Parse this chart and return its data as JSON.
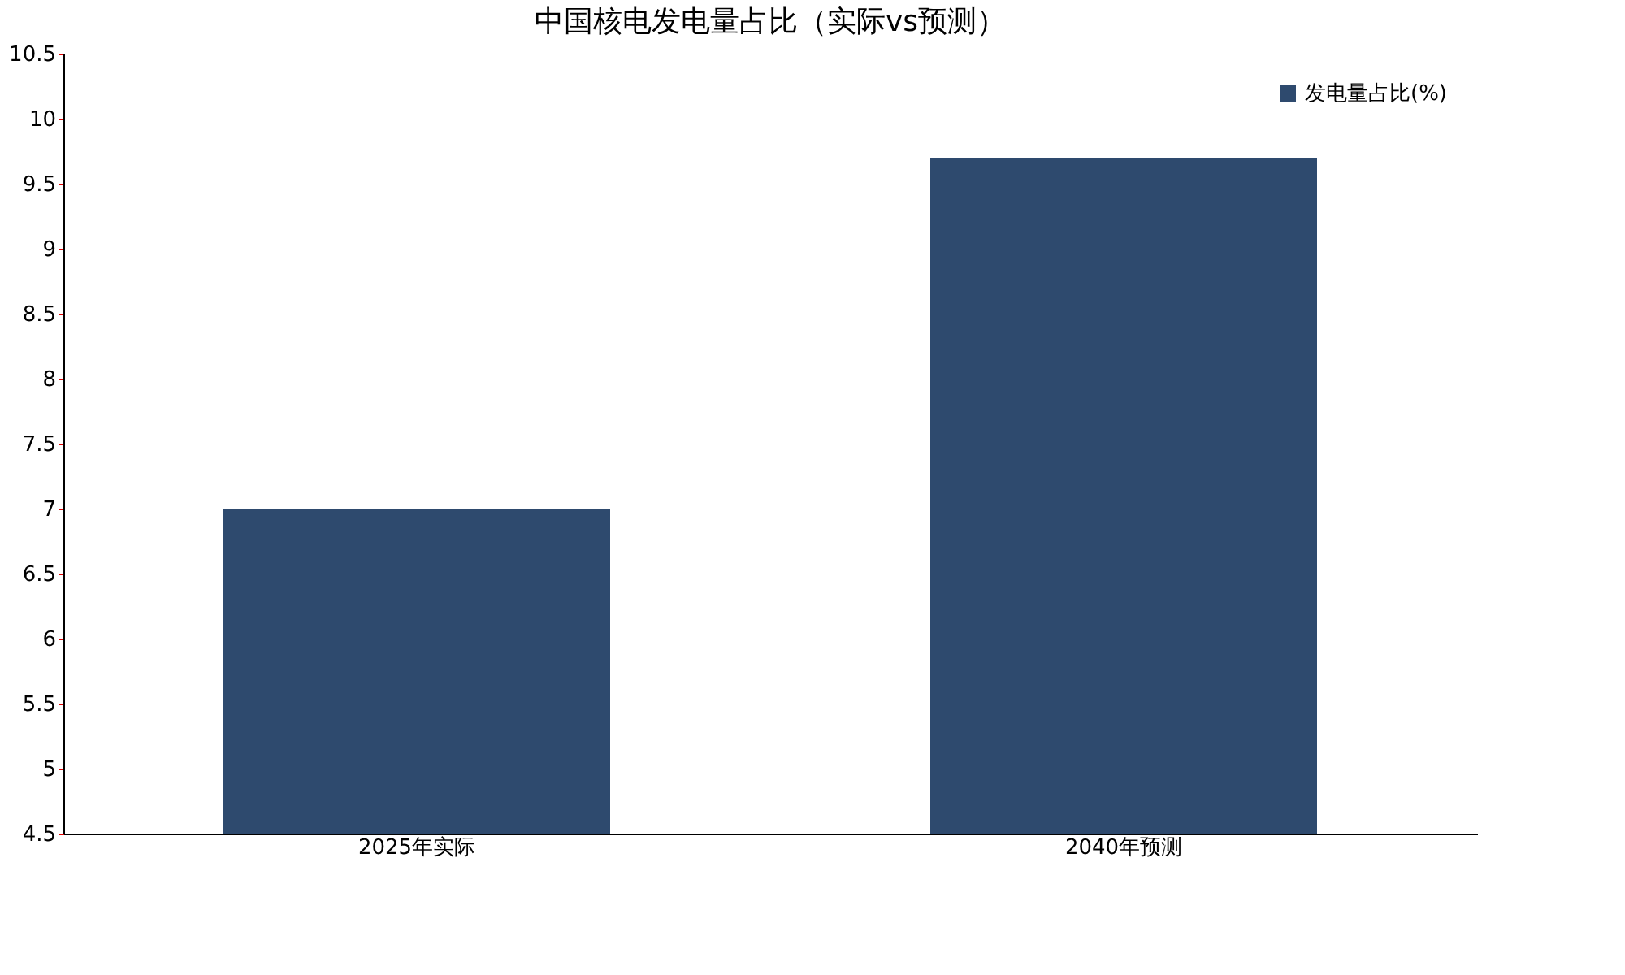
{
  "chart_data": {
    "type": "bar",
    "title": "中国核电发电量占比（实际vs预测）",
    "categories": [
      "2025年实际",
      "2040年预测"
    ],
    "series": [
      {
        "name": "发电量占比(%)",
        "color": "#2e4a6e",
        "values": [
          7.0,
          9.7
        ]
      }
    ],
    "ylim": [
      4.5,
      10.5
    ],
    "yticks": [
      4.5,
      5,
      5.5,
      6,
      6.5,
      7,
      7.5,
      8,
      8.5,
      9,
      9.5,
      10,
      10.5
    ],
    "grid": false,
    "legend": "top right"
  }
}
